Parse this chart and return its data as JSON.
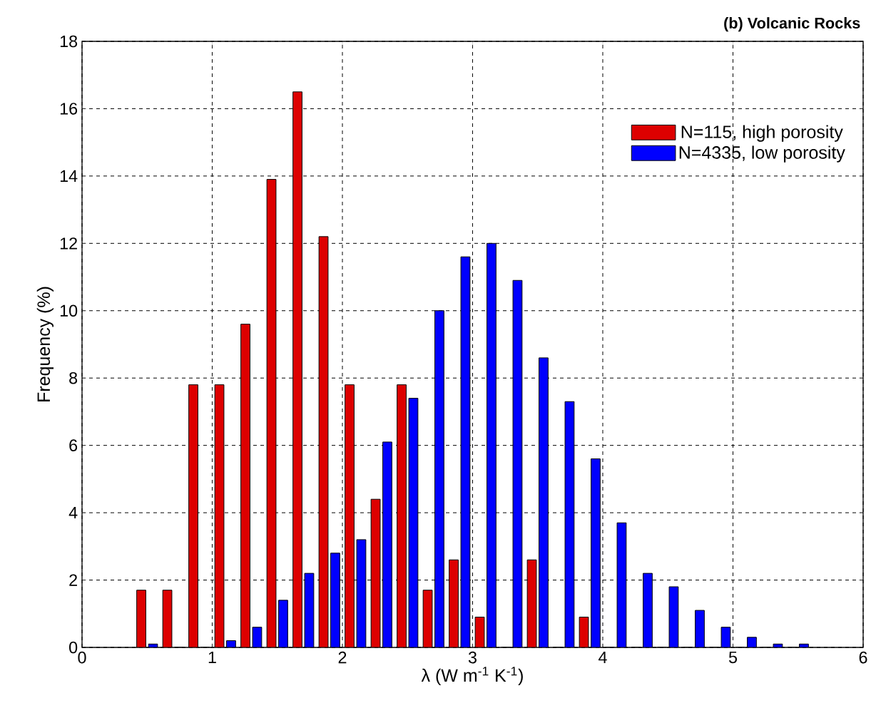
{
  "chart_data": {
    "type": "bar",
    "title": "(b) Volcanic Rocks",
    "xlabel": "λ  (W m$^{-1}$ K$^{-1}$)",
    "ylabel": "Frequency  (%)",
    "x": [
      0.5,
      0.7,
      0.9,
      1.1,
      1.3,
      1.5,
      1.7,
      1.9,
      2.1,
      2.3,
      2.5,
      2.7,
      2.9,
      3.1,
      3.3,
      3.5,
      3.7,
      3.9,
      4.1,
      4.3,
      4.5,
      4.7,
      4.9,
      5.1,
      5.3,
      5.5
    ],
    "series": [
      {
        "name": "N=115, high porosity",
        "color": "#dd0000",
        "values": [
          1.7,
          1.7,
          7.8,
          7.8,
          9.6,
          13.9,
          16.5,
          12.2,
          7.8,
          4.4,
          7.8,
          1.7,
          2.6,
          0.9,
          0,
          2.6,
          0,
          0.9,
          0,
          0,
          0,
          0,
          0,
          0,
          0,
          0
        ]
      },
      {
        "name": "N=4335, low porosity",
        "color": "#0000ff",
        "values": [
          0.1,
          0,
          0,
          0.2,
          0.6,
          1.4,
          2.2,
          2.8,
          3.2,
          6.1,
          7.4,
          10.0,
          11.6,
          12.0,
          10.9,
          8.6,
          7.3,
          5.6,
          3.7,
          2.2,
          1.8,
          1.1,
          0.6,
          0.3,
          0.1,
          0.1
        ]
      }
    ],
    "xlim": [
      0,
      6
    ],
    "ylim": [
      0,
      18
    ],
    "xticks": [
      0,
      1,
      2,
      3,
      4,
      5,
      6
    ],
    "yticks": [
      0,
      2,
      4,
      6,
      8,
      10,
      12,
      14,
      16,
      18
    ],
    "grid": true,
    "legend": "top right"
  }
}
